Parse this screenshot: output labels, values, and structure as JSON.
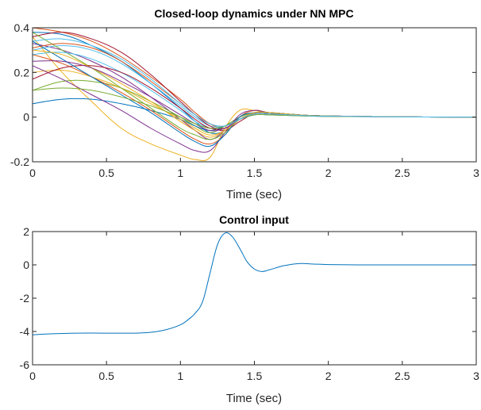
{
  "chart_data": [
    {
      "type": "line",
      "title": "Closed-loop dynamics under NN MPC",
      "xlabel": "Time (sec)",
      "ylabel": "",
      "xlim": [
        0,
        3
      ],
      "ylim": [
        -0.2,
        0.4
      ],
      "xticks": [
        0,
        0.5,
        1,
        1.5,
        2,
        2.5,
        3
      ],
      "xtick_labels": [
        "0",
        "0.5",
        "1",
        "1.5",
        "2",
        "2.5",
        "3"
      ],
      "yticks": [
        -0.2,
        0,
        0.2,
        0.4
      ],
      "ytick_labels": [
        "-0.2",
        "0",
        "0.2",
        "0.4"
      ],
      "grid": false,
      "legend": "none",
      "x": [
        0,
        0.2,
        0.4,
        0.6,
        0.8,
        1.0,
        1.1,
        1.2,
        1.3,
        1.4,
        1.5,
        1.6,
        1.8,
        2.0,
        2.5,
        3.0
      ],
      "series": [
        {
          "color": "#0072BD",
          "values": [
            0.38,
            0.37,
            0.32,
            0.25,
            0.15,
            0.04,
            -0.02,
            -0.07,
            -0.06,
            0.0,
            0.02,
            0.02,
            0.01,
            0.005,
            0.001,
            0.0
          ]
        },
        {
          "color": "#D95319",
          "values": [
            0.4,
            0.38,
            0.34,
            0.27,
            0.18,
            0.08,
            0.02,
            -0.03,
            -0.05,
            -0.01,
            0.02,
            0.02,
            0.01,
            0.005,
            0.001,
            0.0
          ]
        },
        {
          "color": "#EDB120",
          "values": [
            0.36,
            0.2,
            0.07,
            -0.05,
            -0.12,
            -0.17,
            -0.19,
            -0.18,
            -0.05,
            0.03,
            0.03,
            0.02,
            0.01,
            0.005,
            0.001,
            0.0
          ]
        },
        {
          "color": "#7E2F8E",
          "values": [
            0.33,
            0.3,
            0.25,
            0.18,
            0.09,
            -0.01,
            -0.06,
            -0.1,
            -0.06,
            0.0,
            0.02,
            0.02,
            0.01,
            0.005,
            0.001,
            0.0
          ]
        },
        {
          "color": "#77AC30",
          "values": [
            0.12,
            0.16,
            0.16,
            0.13,
            0.07,
            0.0,
            -0.04,
            -0.07,
            -0.04,
            0.0,
            0.02,
            0.015,
            0.01,
            0.004,
            0.001,
            0.0
          ]
        },
        {
          "color": "#4DBEEE",
          "values": [
            0.3,
            0.32,
            0.3,
            0.24,
            0.15,
            0.05,
            0.0,
            -0.04,
            -0.04,
            -0.01,
            0.015,
            0.015,
            0.01,
            0.004,
            0.001,
            0.0
          ]
        },
        {
          "color": "#A2142F",
          "values": [
            0.36,
            0.38,
            0.35,
            0.29,
            0.19,
            0.07,
            0.01,
            -0.04,
            -0.06,
            -0.02,
            0.015,
            0.02,
            0.01,
            0.004,
            0.001,
            0.0
          ]
        },
        {
          "color": "#0072BD",
          "values": [
            0.06,
            0.08,
            0.08,
            0.06,
            0.03,
            -0.01,
            -0.04,
            -0.06,
            -0.04,
            -0.01,
            0.01,
            0.01,
            0.006,
            0.003,
            0.001,
            0.0
          ]
        },
        {
          "color": "#D95319",
          "values": [
            0.28,
            0.24,
            0.18,
            0.11,
            0.03,
            -0.06,
            -0.1,
            -0.12,
            -0.08,
            0.0,
            0.03,
            0.02,
            0.01,
            0.005,
            0.001,
            0.0
          ]
        },
        {
          "color": "#EDB120",
          "values": [
            0.2,
            0.21,
            0.18,
            0.13,
            0.06,
            -0.01,
            -0.05,
            -0.08,
            -0.06,
            -0.01,
            0.015,
            0.015,
            0.008,
            0.004,
            0.001,
            0.0
          ]
        },
        {
          "color": "#7E2F8E",
          "values": [
            0.23,
            0.17,
            0.1,
            0.03,
            -0.05,
            -0.12,
            -0.15,
            -0.15,
            -0.07,
            0.01,
            0.03,
            0.02,
            0.01,
            0.005,
            0.001,
            0.0
          ]
        },
        {
          "color": "#77AC30",
          "values": [
            0.38,
            0.3,
            0.22,
            0.13,
            0.04,
            -0.05,
            -0.08,
            -0.1,
            -0.07,
            -0.01,
            0.02,
            0.02,
            0.01,
            0.005,
            0.001,
            0.0
          ]
        },
        {
          "color": "#4DBEEE",
          "values": [
            0.28,
            0.29,
            0.26,
            0.2,
            0.12,
            0.03,
            -0.02,
            -0.05,
            -0.05,
            -0.01,
            0.015,
            0.015,
            0.008,
            0.004,
            0.001,
            0.0
          ]
        },
        {
          "color": "#A2142F",
          "values": [
            0.17,
            0.22,
            0.23,
            0.2,
            0.13,
            0.04,
            -0.01,
            -0.05,
            -0.05,
            -0.01,
            0.015,
            0.015,
            0.008,
            0.004,
            0.001,
            0.0
          ]
        },
        {
          "color": "#0072BD",
          "values": [
            0.34,
            0.26,
            0.18,
            0.1,
            0.02,
            -0.07,
            -0.11,
            -0.13,
            -0.08,
            0.0,
            0.02,
            0.02,
            0.01,
            0.005,
            0.001,
            0.0
          ]
        },
        {
          "color": "#D95319",
          "values": [
            0.31,
            0.33,
            0.31,
            0.25,
            0.16,
            0.06,
            0.01,
            -0.03,
            -0.04,
            -0.01,
            0.015,
            0.015,
            0.008,
            0.004,
            0.001,
            0.0
          ]
        },
        {
          "color": "#EDB120",
          "values": [
            0.3,
            0.28,
            0.22,
            0.15,
            0.07,
            -0.02,
            -0.06,
            -0.09,
            -0.06,
            -0.01,
            0.02,
            0.02,
            0.01,
            0.005,
            0.001,
            0.0
          ]
        },
        {
          "color": "#7E2F8E",
          "values": [
            0.25,
            0.25,
            0.22,
            0.16,
            0.09,
            0.01,
            -0.03,
            -0.06,
            -0.05,
            -0.01,
            0.015,
            0.015,
            0.008,
            0.004,
            0.001,
            0.0
          ]
        },
        {
          "color": "#77AC30",
          "values": [
            0.12,
            0.13,
            0.12,
            0.09,
            0.05,
            0.0,
            -0.03,
            -0.05,
            -0.04,
            -0.01,
            0.01,
            0.01,
            0.006,
            0.003,
            0.001,
            0.0
          ]
        },
        {
          "color": "#4DBEEE",
          "values": [
            0.34,
            0.35,
            0.32,
            0.26,
            0.17,
            0.06,
            0.01,
            -0.03,
            -0.04,
            -0.01,
            0.015,
            0.015,
            0.008,
            0.004,
            0.001,
            0.0
          ]
        }
      ]
    },
    {
      "type": "line",
      "title": "Control input",
      "xlabel": "Time (sec)",
      "ylabel": "",
      "xlim": [
        0,
        3
      ],
      "ylim": [
        -6,
        2
      ],
      "xticks": [
        0,
        0.5,
        1,
        1.5,
        2,
        2.5,
        3
      ],
      "xtick_labels": [
        "0",
        "0.5",
        "1",
        "1.5",
        "2",
        "2.5",
        "3"
      ],
      "yticks": [
        -6,
        -4,
        -2,
        0,
        2
      ],
      "ytick_labels": [
        "-6",
        "-4",
        "-2",
        "0",
        "2"
      ],
      "grid": false,
      "legend": "none",
      "x": [
        0,
        0.1,
        0.3,
        0.5,
        0.7,
        0.8,
        0.9,
        1.0,
        1.05,
        1.1,
        1.15,
        1.2,
        1.25,
        1.3,
        1.35,
        1.4,
        1.45,
        1.5,
        1.55,
        1.6,
        1.7,
        1.8,
        1.9,
        2.0,
        2.2,
        2.5,
        3.0
      ],
      "series": [
        {
          "color": "#0072BD",
          "values": [
            -4.2,
            -4.15,
            -4.1,
            -4.1,
            -4.1,
            -4.05,
            -3.9,
            -3.6,
            -3.3,
            -2.9,
            -2.2,
            -0.5,
            1.2,
            1.9,
            1.7,
            1.0,
            0.2,
            -0.25,
            -0.4,
            -0.3,
            -0.05,
            0.08,
            0.05,
            0.02,
            0.0,
            0.0,
            0.0
          ]
        }
      ]
    }
  ]
}
